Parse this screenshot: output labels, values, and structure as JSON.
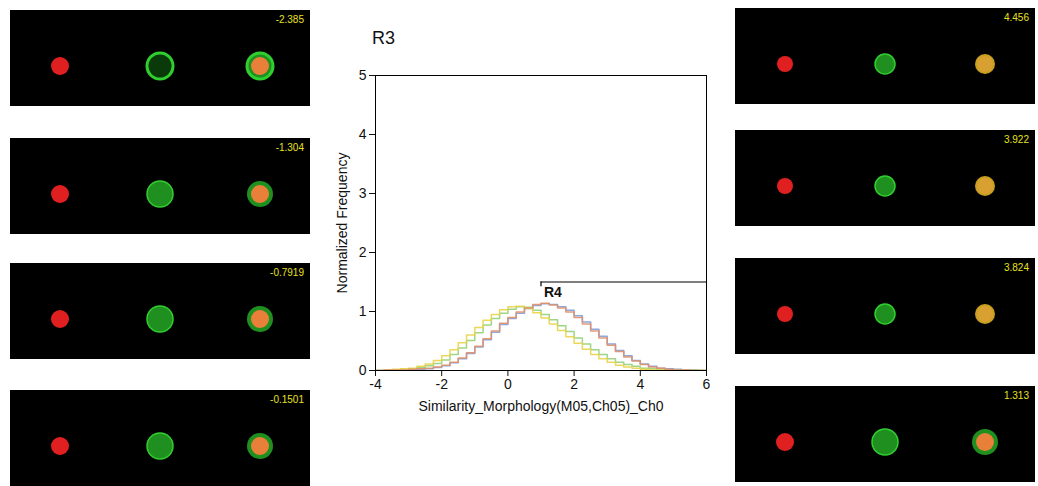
{
  "chart_data": {
    "type": "histogram",
    "title": "R3",
    "x_label": "Similarity_Morphology(M05,Ch05)_Ch0",
    "y_label": "Normalized Frequency",
    "xlim": [
      -4,
      6
    ],
    "ylim": [
      0,
      5
    ],
    "xticks": [
      -4,
      -2,
      0,
      2,
      4,
      6
    ],
    "yticks": [
      0,
      1,
      2,
      3,
      4,
      5
    ],
    "bins": [
      -4,
      -3.75,
      -3.5,
      -3.25,
      -3,
      -2.75,
      -2.5,
      -2.25,
      -2,
      -1.75,
      -1.5,
      -1.25,
      -1,
      -0.75,
      -0.5,
      -0.25,
      0,
      0.25,
      0.5,
      0.75,
      1,
      1.25,
      1.5,
      1.75,
      2,
      2.25,
      2.5,
      2.75,
      3,
      3.25,
      3.5,
      3.75,
      4,
      4.25,
      4.5,
      4.75,
      5,
      5.25,
      5.5,
      5.75,
      6
    ],
    "series": [
      {
        "color": "#7f9fd8",
        "values": [
          0,
          0,
          0.01,
          0.01,
          0.02,
          0.02,
          0.03,
          0.05,
          0.08,
          0.13,
          0.2,
          0.29,
          0.4,
          0.52,
          0.65,
          0.78,
          0.88,
          0.97,
          1.05,
          1.1,
          1.13,
          1.12,
          1.08,
          1.02,
          0.93,
          0.82,
          0.7,
          0.58,
          0.45,
          0.34,
          0.25,
          0.17,
          0.11,
          0.07,
          0.04,
          0.03,
          0.02,
          0.01,
          0.01,
          0
        ]
      },
      {
        "color": "#93d07a",
        "values": [
          0,
          0.01,
          0.01,
          0.02,
          0.03,
          0.05,
          0.08,
          0.12,
          0.18,
          0.27,
          0.38,
          0.51,
          0.64,
          0.77,
          0.88,
          0.97,
          1.04,
          1.08,
          1.07,
          1.02,
          0.95,
          0.86,
          0.76,
          0.66,
          0.55,
          0.45,
          0.35,
          0.27,
          0.2,
          0.14,
          0.1,
          0.07,
          0.04,
          0.03,
          0.02,
          0.01,
          0.01,
          0,
          0,
          0
        ]
      },
      {
        "color": "#e8d44a",
        "values": [
          0,
          0.01,
          0.02,
          0.03,
          0.04,
          0.07,
          0.11,
          0.17,
          0.25,
          0.35,
          0.47,
          0.6,
          0.73,
          0.85,
          0.95,
          1.03,
          1.08,
          1.09,
          1.05,
          0.98,
          0.89,
          0.79,
          0.68,
          0.57,
          0.46,
          0.36,
          0.27,
          0.2,
          0.14,
          0.09,
          0.06,
          0.04,
          0.02,
          0.01,
          0.01,
          0.01,
          0,
          0,
          0,
          0
        ]
      },
      {
        "color": "#e0906a",
        "values": [
          0,
          0.01,
          0.01,
          0.01,
          0.02,
          0.03,
          0.04,
          0.06,
          0.09,
          0.14,
          0.21,
          0.3,
          0.41,
          0.54,
          0.67,
          0.8,
          0.9,
          0.99,
          1.06,
          1.12,
          1.14,
          1.11,
          1.06,
          0.99,
          0.9,
          0.79,
          0.67,
          0.55,
          0.43,
          0.32,
          0.23,
          0.16,
          0.1,
          0.06,
          0.04,
          0.02,
          0.01,
          0.01,
          0,
          0
        ]
      }
    ],
    "gate": {
      "label": "R4",
      "x": [
        1,
        6
      ],
      "y": 1.5
    },
    "images": {
      "left": [
        -2.385,
        -1.304,
        -0.7919,
        -0.1501
      ],
      "right": [
        4.456,
        3.922,
        3.824,
        1.313
      ]
    }
  }
}
